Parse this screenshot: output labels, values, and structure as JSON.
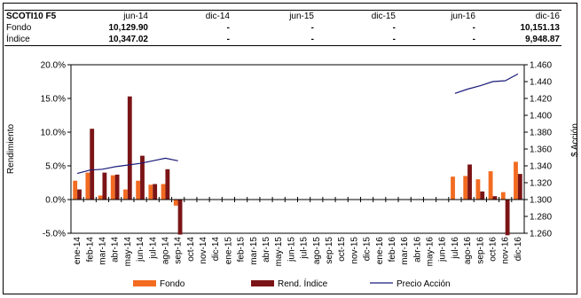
{
  "summary": {
    "series_label": "SCOTI10 F5",
    "dates": [
      "jun-14",
      "dic-14",
      "jun-15",
      "dic-15",
      "jun-16",
      "dic-16"
    ],
    "rows": [
      {
        "label": "Fondo",
        "values": [
          "10,129.90",
          "-",
          "-",
          "-",
          "-",
          "10,151.13"
        ]
      },
      {
        "label": "Índice",
        "values": [
          "10,347.02",
          "-",
          "-",
          "-",
          "-",
          "9,948.87"
        ]
      }
    ]
  },
  "chart_data": {
    "type": "bar",
    "categories": [
      "ene-14",
      "feb-14",
      "mar-14",
      "abr-14",
      "may-14",
      "jun-14",
      "jul-14",
      "ago-14",
      "sep-14",
      "oct-14",
      "nov-14",
      "dic-14",
      "ene-15",
      "feb-15",
      "mar-15",
      "abr-15",
      "may-15",
      "jun-15",
      "jul-15",
      "ago-15",
      "sep-15",
      "oct-15",
      "nov-15",
      "dic-15",
      "ene-16",
      "feb-16",
      "mar-16",
      "abr-16",
      "may-16",
      "jun-16",
      "jul-16",
      "ago-16",
      "sep-16",
      "oct-16",
      "nov-16",
      "dic-16"
    ],
    "ylabel": "Rendimiento",
    "y2label": "$ Acción",
    "ylim": [
      -5.0,
      20.0
    ],
    "yticks": [
      "-5.0%",
      "0.0%",
      "5.0%",
      "10.0%",
      "15.0%",
      "20.0%"
    ],
    "y2lim": [
      1.26,
      1.46
    ],
    "y2ticks": [
      "1.260",
      "1.280",
      "1.300",
      "1.320",
      "1.340",
      "1.360",
      "1.380",
      "1.400",
      "1.420",
      "1.440",
      "1.460"
    ],
    "legend_position": "bottom",
    "series": [
      {
        "name": "Fondo",
        "color": "#f26b21",
        "kind": "bar",
        "values": [
          2.8,
          4.0,
          0.6,
          3.6,
          1.5,
          2.8,
          2.2,
          2.3,
          -0.9,
          null,
          null,
          null,
          null,
          null,
          null,
          null,
          null,
          null,
          null,
          null,
          null,
          null,
          null,
          null,
          null,
          null,
          null,
          null,
          null,
          null,
          3.4,
          3.5,
          3.0,
          4.2,
          1.1,
          5.6
        ]
      },
      {
        "name": "Rend. Índice",
        "color": "#7b1416",
        "kind": "bar",
        "values": [
          1.5,
          10.5,
          4.0,
          3.7,
          15.3,
          6.5,
          2.3,
          4.5,
          -5.2,
          null,
          null,
          null,
          null,
          null,
          null,
          null,
          null,
          null,
          null,
          null,
          null,
          null,
          null,
          null,
          null,
          null,
          null,
          null,
          null,
          null,
          null,
          5.2,
          1.2,
          0.5,
          -5.3,
          3.8
        ]
      },
      {
        "name": "Precio Acción",
        "color": "#1a1a7a",
        "kind": "line",
        "axis": "right",
        "values": [
          1.331,
          1.335,
          1.336,
          1.339,
          1.341,
          1.343,
          1.346,
          1.349,
          1.346,
          null,
          null,
          null,
          null,
          null,
          null,
          null,
          null,
          null,
          null,
          null,
          null,
          null,
          null,
          null,
          null,
          null,
          null,
          null,
          null,
          null,
          1.426,
          1.431,
          1.435,
          1.44,
          1.441,
          1.449
        ]
      }
    ]
  }
}
